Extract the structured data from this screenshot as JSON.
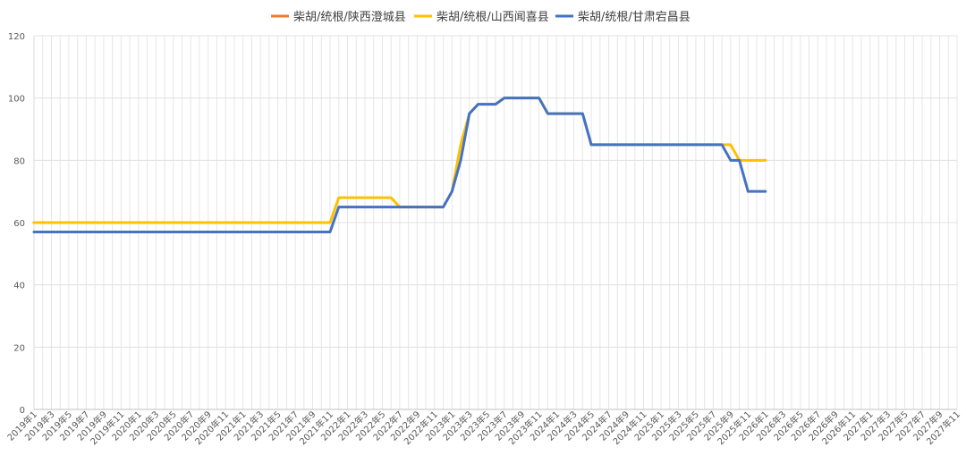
{
  "chart_data": {
    "type": "line",
    "title": "",
    "xlabel": "",
    "ylabel": "",
    "ylim": [
      0,
      120
    ],
    "yticks": [
      0,
      20,
      40,
      60,
      80,
      100,
      120
    ],
    "grid": true,
    "legend_position": "top",
    "x_unit": "month",
    "x_range": [
      "2019-01",
      "2027-11"
    ],
    "x_tick_labels": [
      "2019年1",
      "2019年3",
      "2019年5",
      "2019年7",
      "2019年9",
      "2019年11",
      "2020年1",
      "2020年3",
      "2020年5",
      "2020年7",
      "2020年9",
      "2020年11",
      "2021年1",
      "2021年3",
      "2021年5",
      "2021年7",
      "2021年9",
      "2021年11",
      "2022年1",
      "2022年3",
      "2022年5",
      "2022年7",
      "2022年9",
      "2022年11",
      "2023年1",
      "2023年3",
      "2023年5",
      "2023年7",
      "2023年9",
      "2023年11",
      "2024年1",
      "2024年3",
      "2024年5",
      "2024年7",
      "2024年9",
      "2024年11",
      "2025年1",
      "2025年3",
      "2025年5",
      "2025年7",
      "2025年9",
      "2025年11",
      "2026年1",
      "2026年3",
      "2026年5",
      "2026年7",
      "2026年9",
      "2026年11",
      "2027年1",
      "2027年3",
      "2027年5",
      "2027年7",
      "2027年9",
      "2027年11"
    ],
    "series": [
      {
        "name": "柴胡/统根/陕西澄城县",
        "color": "#ED7D31",
        "points": [
          [
            "2019-01",
            60
          ],
          [
            "2020-07",
            60
          ]
        ]
      },
      {
        "name": "柴胡/统根/山西闻喜县",
        "color": "#FFC000",
        "points": [
          [
            "2019-01",
            60
          ],
          [
            "2021-11",
            60
          ],
          [
            "2021-12",
            68
          ],
          [
            "2022-06",
            68
          ],
          [
            "2022-07",
            65
          ],
          [
            "2022-12",
            65
          ],
          [
            "2023-01",
            70
          ],
          [
            "2023-02",
            85
          ],
          [
            "2023-03",
            95
          ],
          [
            "2023-04",
            98
          ],
          [
            "2023-06",
            98
          ],
          [
            "2023-07",
            100
          ],
          [
            "2023-11",
            100
          ],
          [
            "2023-12",
            95
          ],
          [
            "2024-04",
            95
          ],
          [
            "2024-05",
            85
          ],
          [
            "2025-08",
            85
          ],
          [
            "2025-09",
            85
          ],
          [
            "2025-10",
            80
          ],
          [
            "2026-01",
            80
          ]
        ]
      },
      {
        "name": "柴胡/统根/甘肃宕昌县",
        "color": "#4472C4",
        "points": [
          [
            "2019-01",
            57
          ],
          [
            "2021-11",
            57
          ],
          [
            "2021-12",
            65
          ],
          [
            "2022-12",
            65
          ],
          [
            "2023-01",
            70
          ],
          [
            "2023-02",
            80
          ],
          [
            "2023-03",
            95
          ],
          [
            "2023-04",
            98
          ],
          [
            "2023-06",
            98
          ],
          [
            "2023-07",
            100
          ],
          [
            "2023-11",
            100
          ],
          [
            "2023-12",
            95
          ],
          [
            "2024-04",
            95
          ],
          [
            "2024-05",
            85
          ],
          [
            "2025-08",
            85
          ],
          [
            "2025-09",
            80
          ],
          [
            "2025-10",
            80
          ],
          [
            "2025-11",
            70
          ],
          [
            "2026-01",
            70
          ]
        ]
      }
    ]
  }
}
